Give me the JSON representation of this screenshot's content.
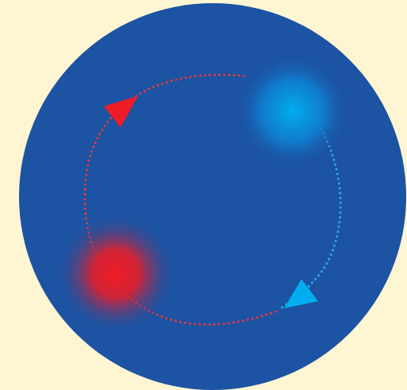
{
  "colors": {
    "background": "#FEF5D3",
    "disc": "#1C53A3",
    "red": "#EE1C25",
    "blue": "#00AEEF",
    "red_dots": "#E03A3E",
    "blue_dots": "#27AAE1"
  },
  "elements": {
    "disc": "disc",
    "red_glow": "red-glowing-sphere",
    "blue_glow": "blue-glowing-sphere",
    "red_path": "red-dotted-arc",
    "blue_path": "blue-dotted-arc",
    "red_arrow": "red-arrowhead-icon",
    "blue_arrow": "blue-arrowhead-icon"
  }
}
